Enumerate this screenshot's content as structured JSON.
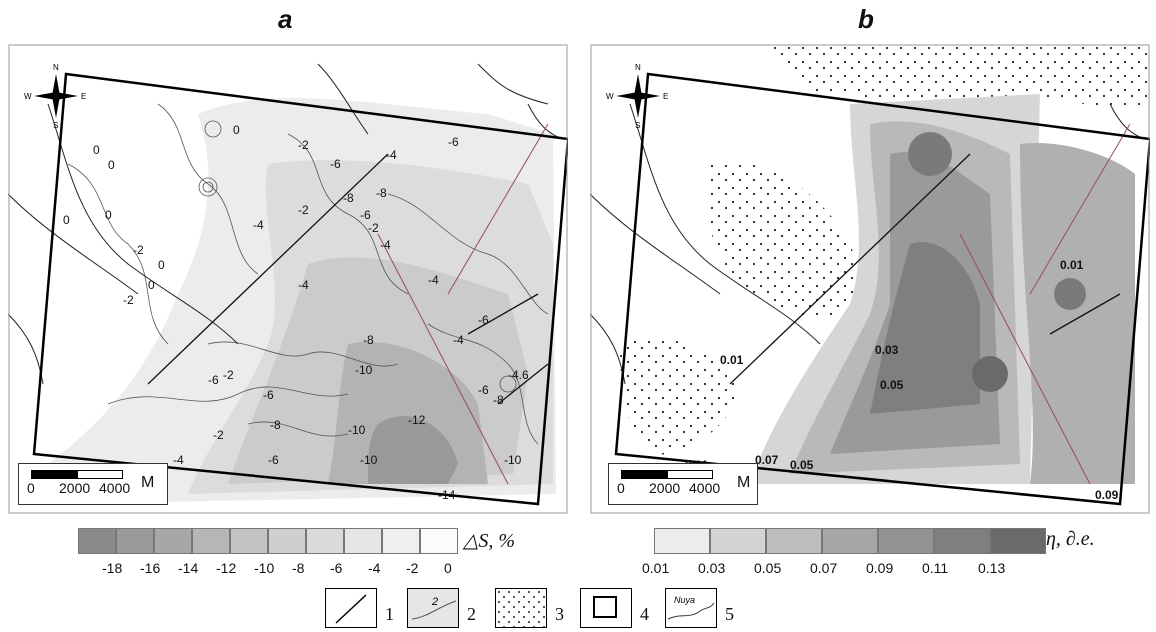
{
  "panels": {
    "a": {
      "title": "a",
      "legend_unit": "△S, %",
      "legend_ticks": [
        "-18",
        "-16",
        "-14",
        "-12",
        "-10",
        "-8",
        "-6",
        "-4",
        "-2",
        "0"
      ],
      "legend_colors": [
        "#8a8a8a",
        "#999999",
        "#a7a7a7",
        "#b6b6b6",
        "#c3c3c3",
        "#cfcfcf",
        "#dadada",
        "#e5e5e5",
        "#efefef",
        "#fbfbfb"
      ],
      "contour_labels": [
        "0",
        "0",
        "0",
        "-2",
        "0",
        "-2",
        "-2",
        "0",
        "0",
        "-6",
        "-8",
        "-8",
        "-6",
        "-4",
        "-6",
        "-2",
        "-4",
        "-2",
        "-4",
        "-4",
        "-6",
        "-4",
        "-6",
        "-2",
        "-4",
        "-8",
        "-10",
        "-6",
        "-8",
        "-12",
        "-10",
        "-10",
        "-6",
        "-8",
        "-4.6",
        "-14",
        "-10",
        "-6",
        "-4",
        "-2",
        "0"
      ]
    },
    "b": {
      "title": "b",
      "legend_unit": "η, ∂.e.",
      "legend_ticks": [
        "0.01",
        "0.03",
        "0.05",
        "0.07",
        "0.09",
        "0.11",
        "0.13"
      ],
      "legend_colors": [
        "#ececec",
        "#d4d4d4",
        "#bdbdbd",
        "#a6a6a6",
        "#929292",
        "#7f7f7f",
        "#6a6a6a"
      ],
      "contour_labels": [
        "0.01",
        "0.01",
        "0.03",
        "0.05",
        "0.01",
        "0.07",
        "0.05",
        "0.09"
      ]
    }
  },
  "compass": {
    "n": "N",
    "s": "S",
    "w": "W",
    "e": "E"
  },
  "scalebar": {
    "labels": [
      "0",
      "2000",
      "4000"
    ],
    "unit": "M"
  },
  "key": {
    "items": [
      {
        "number": "1"
      },
      {
        "number": "2",
        "inner_label": "2"
      },
      {
        "number": "3"
      },
      {
        "number": "4"
      },
      {
        "number": "5",
        "inner_label": "Nuya"
      }
    ]
  }
}
